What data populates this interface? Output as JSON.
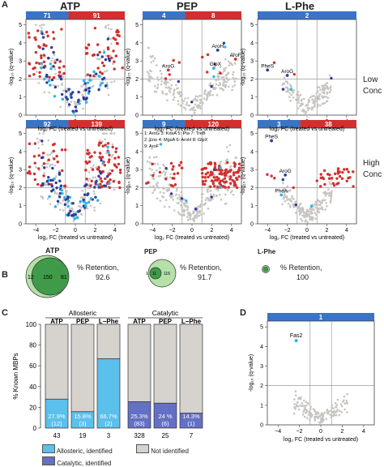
{
  "panels": {
    "A": "A",
    "B": "B",
    "C": "C",
    "D": "D"
  },
  "titles": {
    "atp": "ATP",
    "pep": "PEP",
    "lphe": "L-Phe"
  },
  "row_labels": {
    "low_1": "Low",
    "low_2": "Conc",
    "high_1": "High",
    "high_2": "Conc"
  },
  "axes": {
    "ylabel": "-log₁₀ (q-value)",
    "xlabel": "log₂ FC (treated vs untreated)"
  },
  "colors": {
    "red": "#d32f2f",
    "blue_bar": "#3a74c4",
    "dark_blue": "#2b3e9a",
    "light_blue": "#29b6e6",
    "grey": "#c8c4c0",
    "allosteric": "#5bc0eb",
    "catalytic": "#6470c4",
    "not_identified": "#d6d2ce",
    "venn_outer": "#b5e0a8",
    "venn_inner": "#3f9a4a"
  },
  "volcano_counts": {
    "atp_low": [
      "71",
      "91"
    ],
    "pep_low": [
      "4",
      "8"
    ],
    "lphe_low": [
      "",
      "2"
    ],
    "atp_high": [
      "92",
      "139"
    ],
    "pep_high": [
      "9",
      "120"
    ],
    "lphe_high": [
      "3",
      "38"
    ]
  },
  "annotations_pep_low": [
    "AroH",
    "AroF",
    "GlpX",
    "AroG"
  ],
  "annotations_lphe_low": [
    "PheS",
    "AroG"
  ],
  "annotations_lphe_high": [
    "PheS",
    "AroG",
    "PheA"
  ],
  "pep_high_legend": {
    "l1": "1: AroG  3: KdsA  5: Pta     7: TreB",
    "l2": "2: Eno    4: MgsA  6: AroH  8: GlpX",
    "l3": "9: AroF",
    "nums": "2 3 4 5 6 7 8"
  },
  "venn": {
    "atp": {
      "title": "ATP",
      "left": "12",
      "mid": "150",
      "right": "81",
      "text1": "% Retention,",
      "text2": "92.6"
    },
    "pep": {
      "title": "PEP",
      "left": "1",
      "mid": "11",
      "right": "116",
      "text1": "% Retention,",
      "text2": "91.7"
    },
    "lphe": {
      "title": "L-Phe",
      "left": "",
      "mid": "",
      "right": "",
      "text1": "% Retention,",
      "text2": "100"
    }
  },
  "chart_data": {
    "type": "bar",
    "title": "",
    "ylabel": "% Known MBPs",
    "ylim": [
      0,
      100
    ],
    "yticks": [
      "0",
      "20",
      "40",
      "60",
      "80",
      "100"
    ],
    "groups": [
      "Allosteric",
      "Catalytic"
    ],
    "categories": [
      "ATP",
      "PEP",
      "L−Phe",
      "ATP",
      "PEP",
      "L−Phe"
    ],
    "totals": [
      "43",
      "19",
      "3",
      "328",
      "25",
      "7"
    ],
    "identified_pct": [
      27.9,
      15.8,
      66.7,
      25.3,
      24,
      14.3
    ],
    "labels": [
      "27.9%\n(12)",
      "15.8%\n(3)",
      "66.7%\n(2)",
      "25.3%\n(83)",
      "24 %\n(6)",
      "14.3%\n(1)"
    ],
    "series": [
      {
        "name": "Allosteric, identified"
      },
      {
        "name": "Catalytic, identified"
      },
      {
        "name": "Not identified"
      }
    ]
  },
  "panel_d": {
    "count": "1",
    "label": "Fas2"
  }
}
